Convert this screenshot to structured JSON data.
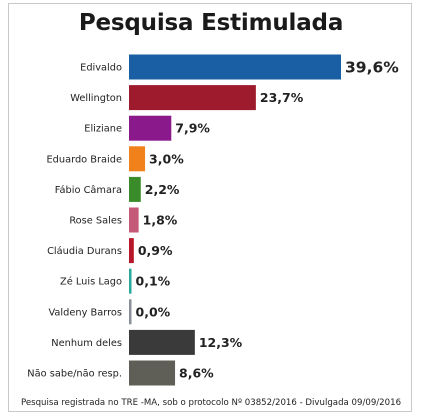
{
  "chart_data": {
    "type": "bar",
    "orientation": "horizontal",
    "title": "Pesquisa Estimulada",
    "categories": [
      "Edivaldo",
      "Wellington",
      "Eliziane",
      "Eduardo Braide",
      "Fábio Câmara",
      "Rose Sales",
      "Cláudia Durans",
      "Zé Luis Lago",
      "Valdeny Barros",
      "Nenhum deles",
      "Não sabe/não resp."
    ],
    "values": [
      39.6,
      23.7,
      7.9,
      3.0,
      2.2,
      1.8,
      0.9,
      0.1,
      0.0,
      12.3,
      8.6
    ],
    "value_labels": [
      "39,6%",
      "23,7%",
      "7,9%",
      "3,0%",
      "2,2%",
      "1,8%",
      "0,9%",
      "0,1%",
      "0,0%",
      "12,3%",
      "8,6%"
    ],
    "colors": [
      "#1a5fa3",
      "#9e1b2d",
      "#8a1a8c",
      "#f0811b",
      "#3a8c2a",
      "#c45a78",
      "#b8162b",
      "#2aa89a",
      "#8a8f9a",
      "#3a3a3a",
      "#5f5f58"
    ],
    "xlim": [
      0,
      39.6
    ],
    "grid": false,
    "legend": "none"
  },
  "footer": "Pesquisa registrada no TRE -MA, sob o protocolo Nº 03852/2016 - Divulgada 09/09/2016"
}
